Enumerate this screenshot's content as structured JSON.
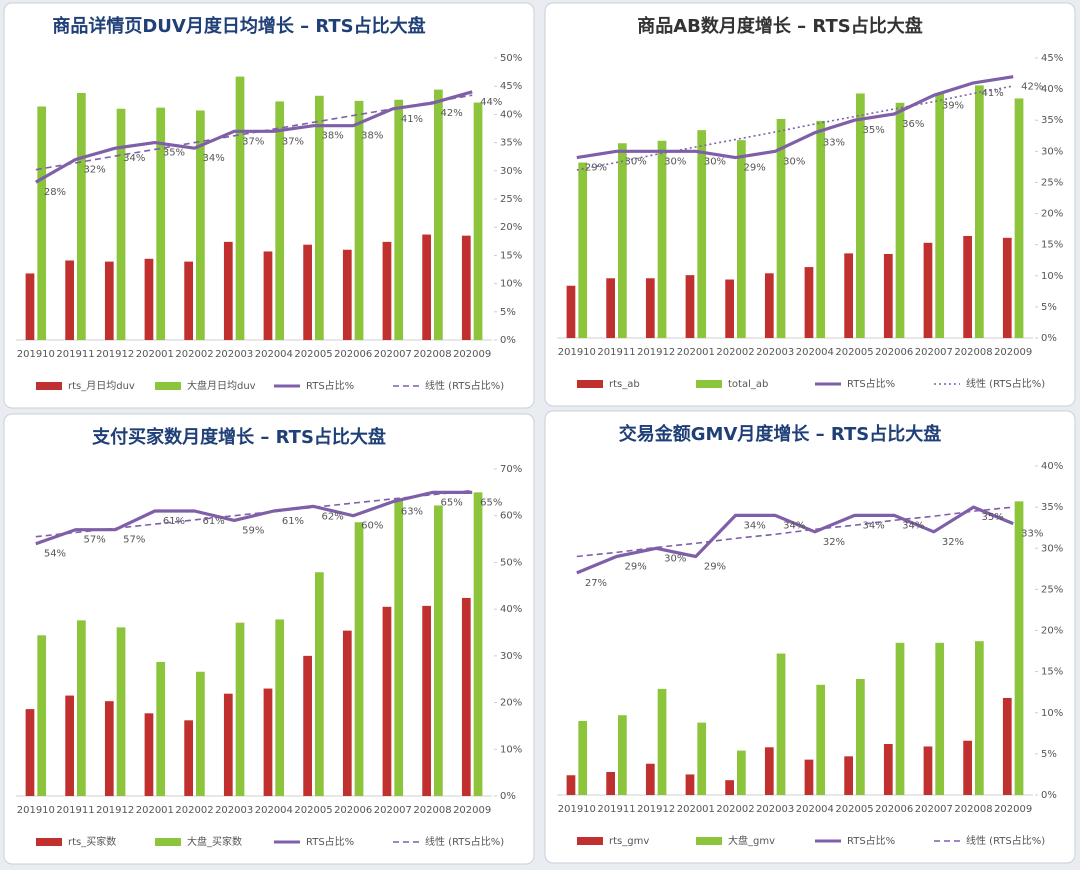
{
  "chart_data": [
    {
      "type": "bar",
      "title": "商品详情页DUV月度日均增长 – RTS占比大盘",
      "title_color": "#1f3f77",
      "categories": [
        "201910",
        "201911",
        "201912",
        "202001",
        "202002",
        "202003",
        "202004",
        "202005",
        "202006",
        "202007",
        "202008",
        "202009"
      ],
      "series": [
        {
          "name": "rts_月日均duv",
          "color": "#c0302e",
          "values": [
            11.8,
            14.1,
            13.9,
            14.4,
            13.9,
            17.4,
            15.7,
            16.9,
            16.0,
            17.4,
            18.7,
            18.5
          ]
        },
        {
          "name": "大盘月日均duv",
          "color": "#8cc43c",
          "values": [
            41.4,
            43.8,
            41.0,
            41.2,
            40.7,
            46.7,
            42.3,
            43.3,
            42.4,
            42.6,
            44.4,
            42.1
          ]
        },
        {
          "name": "RTS占比%",
          "color": "#7e5fa8",
          "type": "line",
          "values": [
            28,
            32,
            34,
            35,
            34,
            37,
            37,
            38,
            38,
            41,
            42,
            44
          ],
          "value_labels": [
            "28%",
            "32%",
            "34%",
            "35%",
            "34%",
            "37%",
            "37%",
            "38%",
            "38%",
            "41%",
            "42%",
            "44%"
          ]
        },
        {
          "name": "线性 (RTS占比%)",
          "color": "#7e5fa8",
          "type": "line",
          "style": "dashed",
          "values": [
            30.2,
            31.4,
            32.6,
            33.8,
            35.0,
            36.2,
            37.4,
            38.6,
            39.8,
            41.0,
            42.2,
            43.4
          ]
        }
      ],
      "ylim": [
        0,
        50
      ],
      "yticks": [
        {
          "value": 0,
          "label": "0%"
        },
        {
          "value": 5,
          "label": "5%"
        },
        {
          "value": 10,
          "label": "10%"
        },
        {
          "value": 15,
          "label": "15%"
        },
        {
          "value": 20,
          "label": "20%"
        },
        {
          "value": 25,
          "label": "25%"
        },
        {
          "value": 30,
          "label": "30%"
        },
        {
          "value": 35,
          "label": "35%"
        },
        {
          "value": 40,
          "label": "40%"
        },
        {
          "value": 45,
          "label": "45%"
        },
        {
          "value": 50,
          "label": "50%"
        }
      ]
    },
    {
      "type": "bar",
      "title": "商品AB数月度增长 – RTS占比大盘",
      "title_color": "#333333",
      "categories": [
        "201910",
        "201911",
        "201912",
        "202001",
        "202002",
        "202003",
        "202004",
        "202005",
        "202006",
        "202007",
        "202008",
        "202009"
      ],
      "series": [
        {
          "name": "rts_ab",
          "color": "#c0302e",
          "values": [
            8.4,
            9.6,
            9.6,
            10.1,
            9.4,
            10.4,
            11.4,
            13.6,
            13.5,
            15.3,
            16.4,
            16.1
          ]
        },
        {
          "name": "total_ab",
          "color": "#8cc43c",
          "values": [
            28.2,
            31.3,
            31.7,
            33.4,
            31.8,
            35.2,
            34.9,
            39.3,
            37.8,
            39.4,
            40.6,
            38.5
          ]
        },
        {
          "name": "RTS占比%",
          "color": "#7e5fa8",
          "type": "line",
          "values": [
            29,
            30,
            30,
            30,
            29,
            30,
            33,
            35,
            36,
            39,
            41,
            42
          ],
          "value_labels": [
            "29%",
            "30%",
            "30%",
            "30%",
            "29%",
            "30%",
            "33%",
            "35%",
            "36%",
            "39%",
            "41%",
            "42%"
          ]
        },
        {
          "name": "线性 (RTS占比%)",
          "color": "#7e5fa8",
          "type": "line",
          "style": "dotted",
          "values": [
            27.0,
            28.2,
            29.5,
            30.7,
            31.9,
            33.1,
            34.4,
            35.6,
            36.8,
            38.0,
            39.3,
            40.5
          ]
        }
      ],
      "ylim": [
        0,
        45
      ],
      "yticks": [
        {
          "value": 0,
          "label": "0%"
        },
        {
          "value": 5,
          "label": "5%"
        },
        {
          "value": 10,
          "label": "10%"
        },
        {
          "value": 15,
          "label": "15%"
        },
        {
          "value": 20,
          "label": "20%"
        },
        {
          "value": 25,
          "label": "25%"
        },
        {
          "value": 30,
          "label": "30%"
        },
        {
          "value": 35,
          "label": "35%"
        },
        {
          "value": 40,
          "label": "40%"
        },
        {
          "value": 45,
          "label": "45%"
        }
      ]
    },
    {
      "type": "bar",
      "title": "支付买家数月度增长 – RTS占比大盘",
      "title_color": "#1f3f77",
      "categories": [
        "201910",
        "201911",
        "201912",
        "202001",
        "202002",
        "202003",
        "202004",
        "202005",
        "202006",
        "202007",
        "202008",
        "202009"
      ],
      "series": [
        {
          "name": "rts_买家数",
          "color": "#c0302e",
          "values": [
            18.6,
            21.5,
            20.3,
            17.7,
            16.2,
            21.9,
            23.0,
            30.0,
            35.4,
            40.5,
            40.7,
            42.4
          ]
        },
        {
          "name": "大盘_买家数",
          "color": "#8cc43c",
          "values": [
            34.4,
            37.6,
            36.1,
            28.7,
            26.6,
            37.1,
            37.8,
            47.9,
            58.6,
            63.3,
            62.2,
            65.0
          ]
        },
        {
          "name": "RTS占比%",
          "color": "#7e5fa8",
          "type": "line",
          "values": [
            54,
            57,
            57,
            61,
            61,
            59,
            61,
            62,
            60,
            63,
            65,
            65
          ],
          "value_labels": [
            "54%",
            "57%",
            "57%",
            "61%",
            "61%",
            "59%",
            "61%",
            "62%",
            "60%",
            "63%",
            "65%",
            "65%"
          ]
        },
        {
          "name": "线性 (RTS占比%)",
          "color": "#7e5fa8",
          "type": "line",
          "style": "dashed",
          "values": [
            55.5,
            56.4,
            57.3,
            58.2,
            59.1,
            60.0,
            60.9,
            61.8,
            62.7,
            63.6,
            64.5,
            65.4
          ]
        }
      ],
      "ylim": [
        0,
        70
      ],
      "yticks": [
        {
          "value": 0,
          "label": "0%"
        },
        {
          "value": 10,
          "label": "10%"
        },
        {
          "value": 20,
          "label": "20%"
        },
        {
          "value": 30,
          "label": "30%"
        },
        {
          "value": 40,
          "label": "40%"
        },
        {
          "value": 50,
          "label": "50%"
        },
        {
          "value": 60,
          "label": "60%"
        },
        {
          "value": 70,
          "label": "70%"
        }
      ]
    },
    {
      "type": "bar",
      "title": "交易金额GMV月度增长 – RTS占比大盘",
      "title_color": "#1f3f77",
      "categories": [
        "201910",
        "201911",
        "201912",
        "202001",
        "202002",
        "202003",
        "202004",
        "202005",
        "202006",
        "202007",
        "202008",
        "202009"
      ],
      "series": [
        {
          "name": "rts_gmv",
          "color": "#c0302e",
          "values": [
            2.4,
            2.8,
            3.8,
            2.5,
            1.8,
            5.8,
            4.3,
            4.7,
            6.2,
            5.9,
            6.6,
            11.8
          ]
        },
        {
          "name": "大盘_gmv",
          "color": "#8cc43c",
          "values": [
            9.0,
            9.7,
            12.9,
            8.8,
            5.4,
            17.2,
            13.4,
            14.1,
            18.5,
            18.5,
            18.7,
            35.7
          ]
        },
        {
          "name": "RTS占比%",
          "color": "#7e5fa8",
          "type": "line",
          "values": [
            27,
            29,
            30,
            29,
            34,
            34,
            32,
            34,
            34,
            32,
            35,
            33
          ],
          "value_labels": [
            "27%",
            "29%",
            "30%",
            "29%",
            "34%",
            "34%",
            "32%",
            "34%",
            "34%",
            "32%",
            "35%",
            "33%"
          ]
        },
        {
          "name": "线性 (RTS占比%)",
          "color": "#7e5fa8",
          "type": "line",
          "style": "dashed",
          "values": [
            29.0,
            29.5,
            30.1,
            30.6,
            31.2,
            31.7,
            32.3,
            32.8,
            33.4,
            33.9,
            34.5,
            35.0
          ]
        }
      ],
      "ylim": [
        0,
        40
      ],
      "yticks": [
        {
          "value": 0,
          "label": "0%"
        },
        {
          "value": 5,
          "label": "5%"
        },
        {
          "value": 10,
          "label": "10%"
        },
        {
          "value": 15,
          "label": "15%"
        },
        {
          "value": 20,
          "label": "20%"
        },
        {
          "value": 25,
          "label": "25%"
        },
        {
          "value": 30,
          "label": "30%"
        },
        {
          "value": 35,
          "label": "35%"
        },
        {
          "value": 40,
          "label": "40%"
        }
      ]
    }
  ]
}
